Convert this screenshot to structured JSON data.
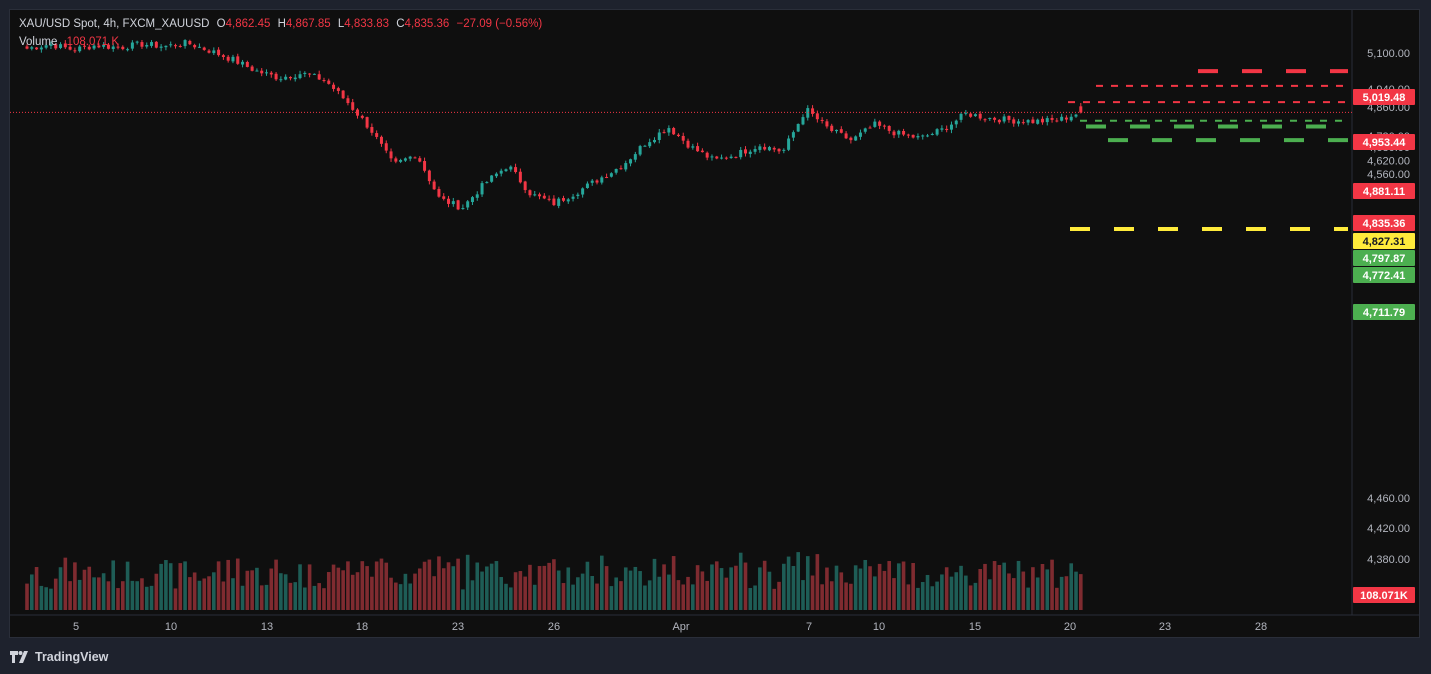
{
  "legend": {
    "symbol": "XAU/USD Spot, 4h, FXCM_XAUUSD",
    "o_label": "O",
    "o_value": "4,862.45",
    "h_label": "H",
    "h_value": "4,867.85",
    "l_label": "L",
    "l_value": "4,833.83",
    "c_label": "C",
    "c_value": "4,835.36",
    "change": "−27.09 (−0.56%)",
    "volume_label": "Volume",
    "volume_value": "108.071 K"
  },
  "footer": {
    "brand": "TradingView"
  },
  "colors": {
    "background": "#0f0f0f",
    "up": "#26a69a",
    "down": "#f23645",
    "volume_up": "#1e5d56",
    "volume_down": "#7f2b30",
    "level_red": "#f23645",
    "level_yellow": "#ffeb3b",
    "level_green": "#4caf50",
    "axis_text": "#b2b5be"
  },
  "chart_data": {
    "type": "candlestick",
    "price_scale": {
      "ticks": [
        "5,100.00",
        "4,940.00",
        "4,860.00",
        "4,730.00",
        "4,680.00",
        "4,620.00",
        "4,560.00",
        "4,500.00",
        "4,460.00",
        "4,420.00",
        "4,380.00"
      ],
      "last_price_label": "4,835.36",
      "volume_label": "108.071K"
    },
    "time_axis": {
      "ticks": [
        "5",
        "10",
        "13",
        "18",
        "23",
        "26",
        "Apr",
        "7",
        "10",
        "15",
        "20",
        "23",
        "28"
      ]
    },
    "levels": [
      {
        "price": 5019.48,
        "label": "5,019.48",
        "color": "red",
        "style": "long-dash"
      },
      {
        "price": 4953.44,
        "label": "4,953.44",
        "color": "red",
        "style": "short-dash"
      },
      {
        "price": 4881.11,
        "label": "4,881.11",
        "color": "red",
        "style": "short-dash"
      },
      {
        "price": 4827.31,
        "label": "4,827.31",
        "color": "yellow",
        "style": "long-dash"
      },
      {
        "price": 4797.87,
        "label": "4,797.87",
        "color": "green",
        "style": "short-dash"
      },
      {
        "price": 4772.41,
        "label": "4,772.41",
        "color": "green",
        "style": "long-dash"
      },
      {
        "price": 4711.79,
        "label": "4,711.79",
        "color": "green",
        "style": "long-dash"
      }
    ],
    "close_path": [
      {
        "date": "Mar 2",
        "close": 5120
      },
      {
        "date": "Mar 4",
        "close": 5140
      },
      {
        "date": "Mar 5",
        "close": 5115
      },
      {
        "date": "Mar 7",
        "close": 5135
      },
      {
        "date": "Mar 9",
        "close": 5125
      },
      {
        "date": "Mar 10",
        "close": 5140
      },
      {
        "date": "Mar 11",
        "close": 5130
      },
      {
        "date": "Mar 12",
        "close": 5145
      },
      {
        "date": "Mar 13",
        "close": 5110
      },
      {
        "date": "Mar 14",
        "close": 5070
      },
      {
        "date": "Mar 15",
        "close": 5020
      },
      {
        "date": "Mar 16",
        "close": 4990
      },
      {
        "date": "Mar 17",
        "close": 5010
      },
      {
        "date": "Mar 18",
        "close": 4980
      },
      {
        "date": "Mar 19",
        "close": 4880
      },
      {
        "date": "Mar 20",
        "close": 4760
      },
      {
        "date": "Mar 21",
        "close": 4600
      },
      {
        "date": "Mar 22",
        "close": 4650
      },
      {
        "date": "Mar 23",
        "close": 4450
      },
      {
        "date": "Mar 24",
        "close": 4410
      },
      {
        "date": "Mar 25",
        "close": 4520
      },
      {
        "date": "Mar 26",
        "close": 4600
      },
      {
        "date": "Mar 27",
        "close": 4470
      },
      {
        "date": "Mar 28",
        "close": 4430
      },
      {
        "date": "Mar 29",
        "close": 4480
      },
      {
        "date": "Mar 30",
        "close": 4540
      },
      {
        "date": "Mar 31",
        "close": 4600
      },
      {
        "date": "Apr 1",
        "close": 4700
      },
      {
        "date": "Apr 2",
        "close": 4770
      },
      {
        "date": "Apr 3",
        "close": 4680
      },
      {
        "date": "Apr 4",
        "close": 4620
      },
      {
        "date": "Apr 5",
        "close": 4650
      },
      {
        "date": "Apr 6",
        "close": 4690
      },
      {
        "date": "Apr 7",
        "close": 4660
      },
      {
        "date": "Apr 8",
        "close": 4850
      },
      {
        "date": "Apr 9",
        "close": 4760
      },
      {
        "date": "Apr 10",
        "close": 4710
      },
      {
        "date": "Apr 11",
        "close": 4780
      },
      {
        "date": "Apr 12",
        "close": 4740
      },
      {
        "date": "Apr 13",
        "close": 4720
      },
      {
        "date": "Apr 14",
        "close": 4760
      },
      {
        "date": "Apr 15",
        "close": 4830
      },
      {
        "date": "Apr 16",
        "close": 4810
      },
      {
        "date": "Apr 17",
        "close": 4800
      },
      {
        "date": "Apr 18",
        "close": 4795
      },
      {
        "date": "Apr 19",
        "close": 4800
      },
      {
        "date": "Apr 20",
        "close": 4835.36
      }
    ]
  }
}
